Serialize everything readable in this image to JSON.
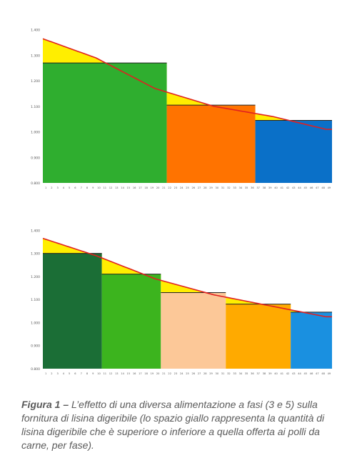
{
  "chart_data": [
    {
      "type": "bar",
      "phases": [
        {
          "from": 1,
          "to": 21,
          "value": 1.27,
          "color": "#2fae2f"
        },
        {
          "from": 22,
          "to": 36,
          "value": 1.105,
          "color": "#ff7300"
        },
        {
          "from": 37,
          "to": 49,
          "value": 1.045,
          "color": "#0a70c8"
        }
      ],
      "requirement_curve": {
        "x": [
          1,
          10,
          20,
          30,
          40,
          49
        ],
        "y": [
          1.365,
          1.29,
          1.17,
          1.1,
          1.06,
          1.01
        ]
      },
      "ylim": [
        0.8,
        1.5
      ],
      "yticks": [
        "0.800",
        "0.900",
        "1.000",
        "1.100",
        "1.200",
        "1.300",
        "1.400"
      ],
      "x": [
        1,
        49
      ],
      "colors": {
        "surplus_deficit": "#ffee00",
        "curve": "#e02020"
      }
    },
    {
      "type": "bar",
      "phases": [
        {
          "from": 1,
          "to": 10,
          "value": 1.3,
          "color": "#1b6e36"
        },
        {
          "from": 11,
          "to": 20,
          "value": 1.21,
          "color": "#3cb41e"
        },
        {
          "from": 21,
          "to": 31,
          "value": 1.13,
          "color": "#fcc898"
        },
        {
          "from": 32,
          "to": 42,
          "value": 1.08,
          "color": "#ffaa00"
        },
        {
          "from": 43,
          "to": 49,
          "value": 1.045,
          "color": "#1a90e0"
        }
      ],
      "requirement_curve": {
        "x": [
          1,
          10,
          20,
          30,
          40,
          49
        ],
        "y": [
          1.365,
          1.29,
          1.19,
          1.12,
          1.07,
          1.025
        ]
      },
      "ylim": [
        0.8,
        1.5
      ],
      "yticks": [
        "0.800",
        "0.900",
        "1.000",
        "1.100",
        "1.200",
        "1.300",
        "1.400"
      ],
      "x": [
        1,
        49
      ],
      "colors": {
        "surplus_deficit": "#ffee00",
        "curve": "#e02020"
      }
    }
  ],
  "caption": {
    "label": "Figura 1 –",
    "text": " L’effetto di una diversa alimentazione a fasi (3 e 5) sulla fornitura di lisina digeribile (lo spazio giallo rappresenta la quantità di lisina digeribile che è superiore o inferiore a quella offerta ai polli da carne, per fase)."
  }
}
